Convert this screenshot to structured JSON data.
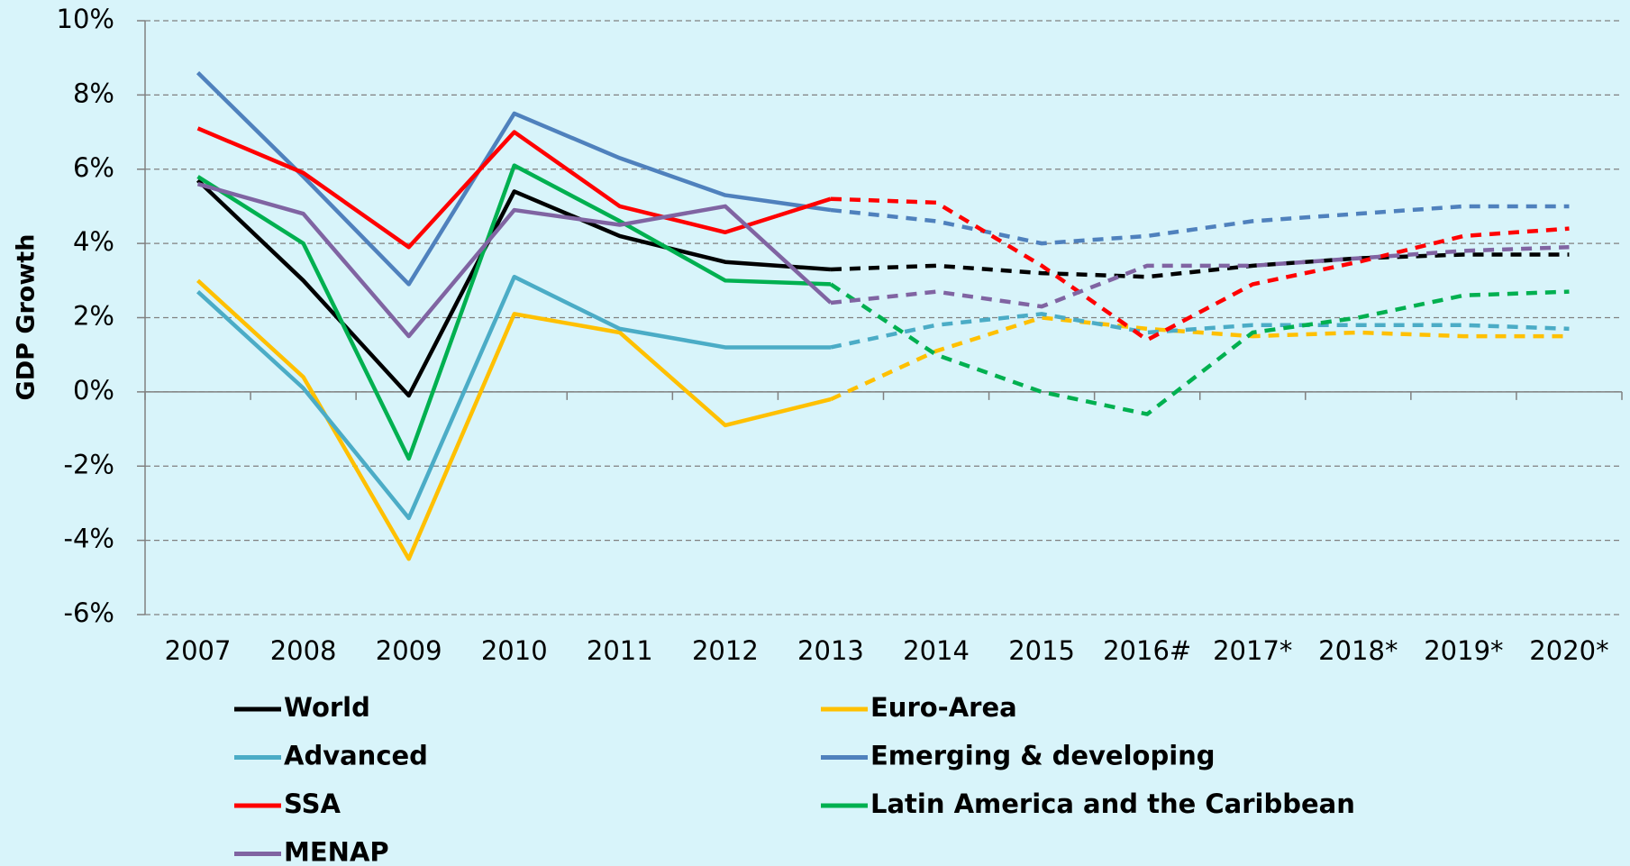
{
  "chart_data": {
    "type": "line",
    "y_label": "GDP Growth",
    "categories": [
      "2007",
      "2008",
      "2009",
      "2010",
      "2011",
      "2012",
      "2013",
      "2014",
      "2015",
      "2016#",
      "2017*",
      "2018*",
      "2019*",
      "2020*"
    ],
    "dashed_from_category": "2013",
    "ylim": [
      -6,
      10
    ],
    "yticks": [
      {
        "value": -6,
        "label": "-6%"
      },
      {
        "value": -4,
        "label": "-4%"
      },
      {
        "value": -2,
        "label": "-2%"
      },
      {
        "value": 0,
        "label": "0%"
      },
      {
        "value": 2,
        "label": "2%"
      },
      {
        "value": 4,
        "label": "4%"
      },
      {
        "value": 6,
        "label": "6%"
      },
      {
        "value": 8,
        "label": "8%"
      },
      {
        "value": 10,
        "label": "10%"
      }
    ],
    "grid": true,
    "series": [
      {
        "name": "World",
        "color": "#000000",
        "values": [
          5.7,
          3.0,
          -0.1,
          5.4,
          4.2,
          3.5,
          3.3,
          3.4,
          3.2,
          3.1,
          3.4,
          3.6,
          3.7,
          3.7
        ]
      },
      {
        "name": "Euro-Area",
        "color": "#ffc000",
        "values": [
          3.0,
          0.4,
          -4.5,
          2.1,
          1.6,
          -0.9,
          -0.2,
          1.1,
          2.0,
          1.7,
          1.5,
          1.6,
          1.5,
          1.5
        ]
      },
      {
        "name": "Advanced",
        "color": "#4bacc6",
        "values": [
          2.7,
          0.1,
          -3.4,
          3.1,
          1.7,
          1.2,
          1.2,
          1.8,
          2.1,
          1.6,
          1.8,
          1.8,
          1.8,
          1.7
        ]
      },
      {
        "name": "Emerging & developing",
        "color": "#4f81bd",
        "values": [
          8.6,
          5.8,
          2.9,
          7.5,
          6.3,
          5.3,
          4.9,
          4.6,
          4.0,
          4.2,
          4.6,
          4.8,
          5.0,
          5.0
        ]
      },
      {
        "name": "SSA",
        "color": "#ff0000",
        "values": [
          7.1,
          5.9,
          3.9,
          7.0,
          5.0,
          4.3,
          5.2,
          5.1,
          3.4,
          1.4,
          2.9,
          3.5,
          4.2,
          4.4
        ]
      },
      {
        "name": "Latin America and the Caribbean",
        "color": "#00b050",
        "values": [
          5.8,
          4.0,
          -1.8,
          6.1,
          4.6,
          3.0,
          2.9,
          1.0,
          0.0,
          -0.6,
          1.6,
          2.0,
          2.6,
          2.7
        ]
      },
      {
        "name": "MENAP",
        "color": "#8064a2",
        "values": [
          5.6,
          4.8,
          1.5,
          4.9,
          4.5,
          5.0,
          2.4,
          2.7,
          2.3,
          3.4,
          3.4,
          3.6,
          3.8,
          3.9
        ]
      }
    ]
  }
}
